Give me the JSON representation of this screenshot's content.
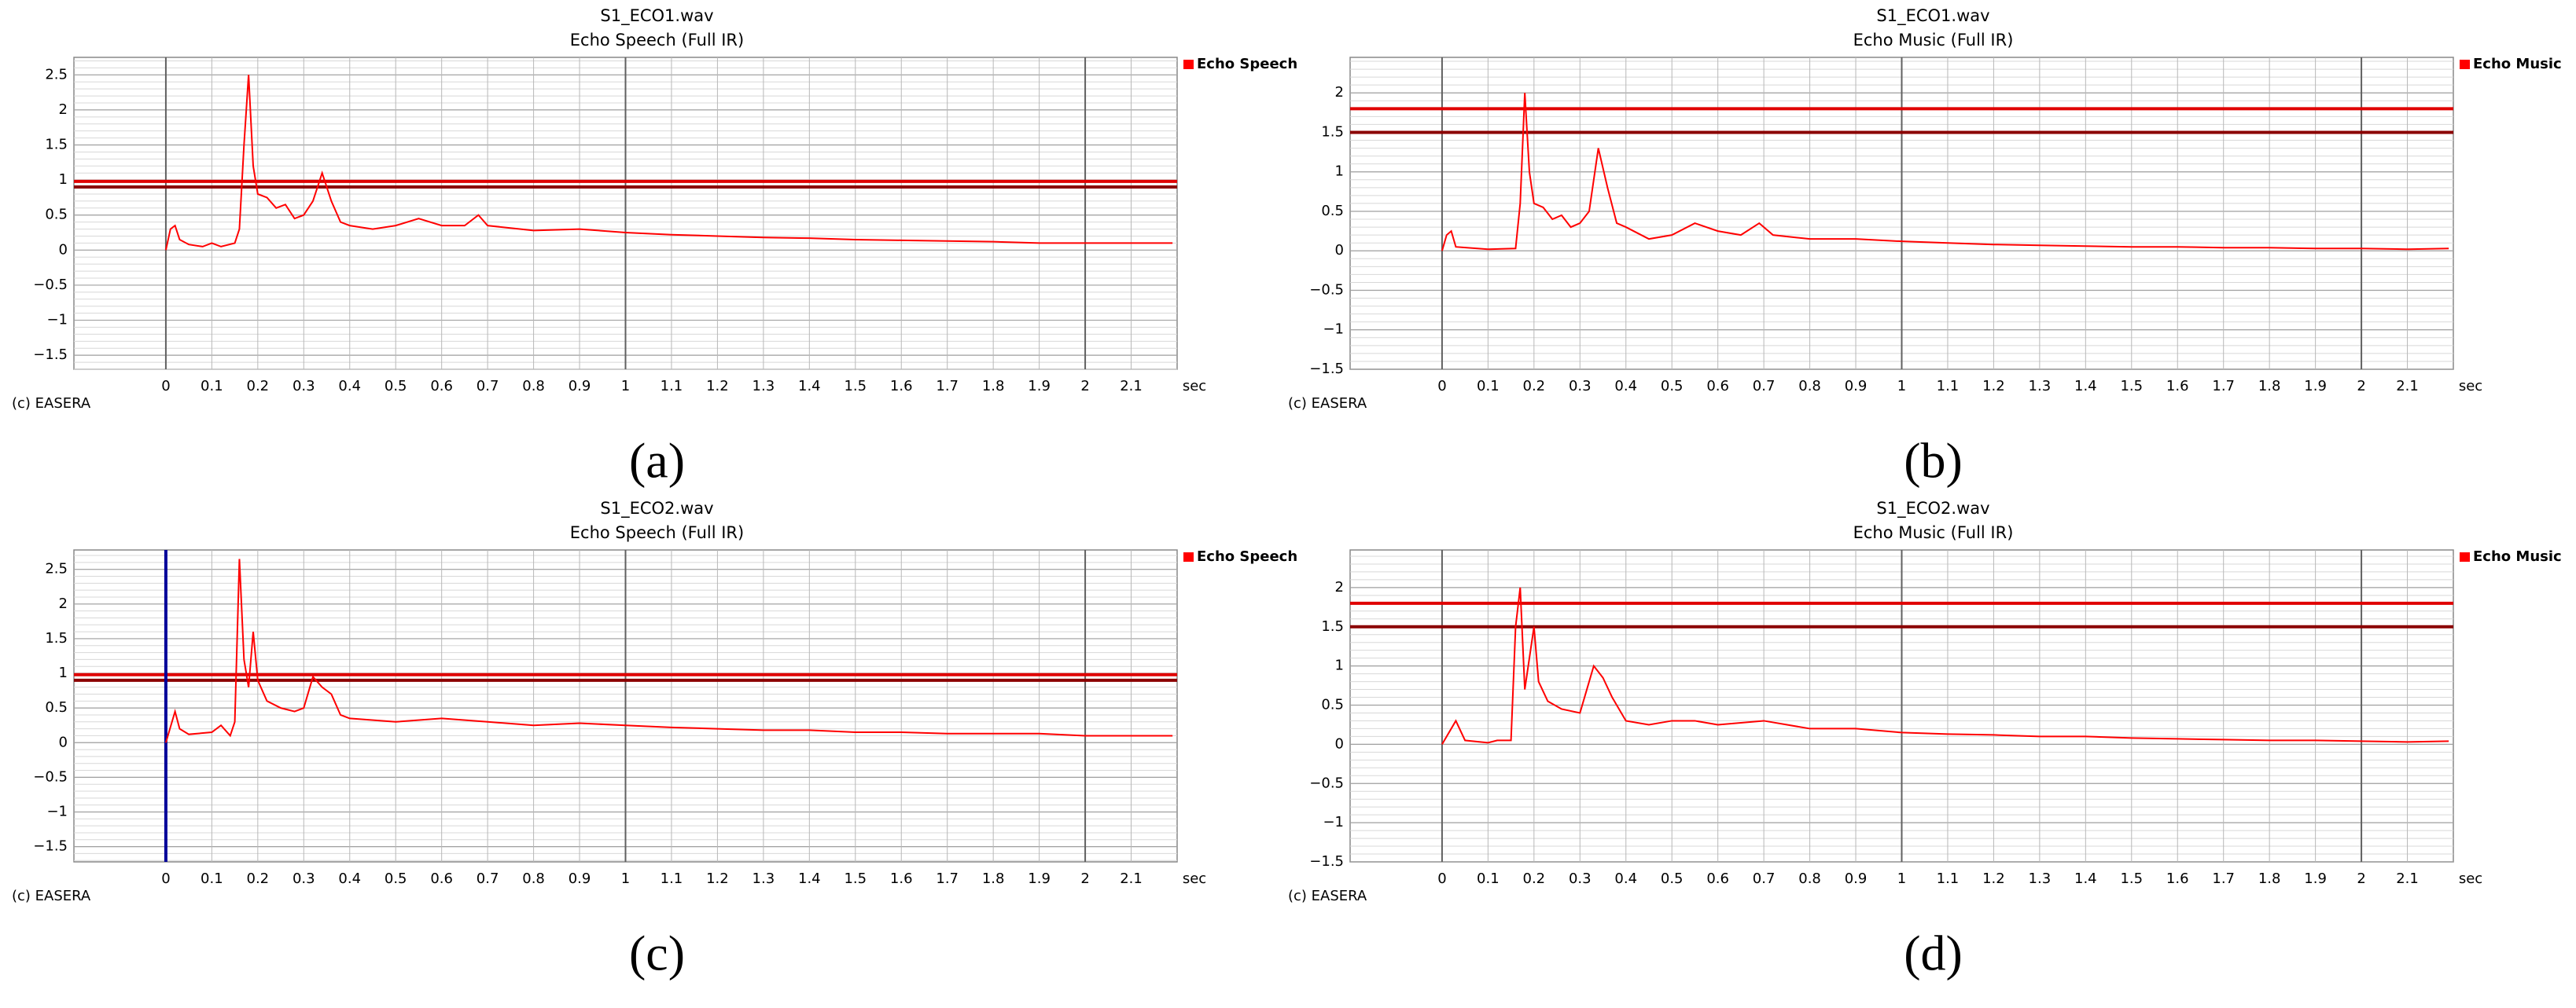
{
  "chart_data": [
    {
      "type": "line",
      "panel_label": "(a)",
      "title": "S1_ECO1.wav",
      "subtitle": "Echo Speech (Full IR)",
      "credit": "(c) EASERA",
      "xlabel": "sec",
      "xlim": [
        -0.2,
        2.2
      ],
      "xticks": [
        0,
        0.1,
        0.2,
        0.3,
        0.4,
        0.5,
        0.6,
        0.7,
        0.8,
        0.9,
        1,
        1.1,
        1.2,
        1.3,
        1.4,
        1.5,
        1.6,
        1.7,
        1.8,
        1.9,
        2,
        2.1
      ],
      "ylim": [
        -1.7,
        2.75
      ],
      "yticks": [
        {
          "value": -1.5,
          "label": "−1.5"
        },
        {
          "value": -1,
          "label": "−1"
        },
        {
          "value": -0.5,
          "label": "−0.5"
        },
        0,
        0.5,
        1,
        1.5,
        2,
        2.5
      ],
      "y_minor_step": 0.1,
      "reference_lines": [
        {
          "value": 0.98,
          "color": "#e00000"
        },
        {
          "value": 0.9,
          "color": "#8b0000"
        }
      ],
      "x": [
        0,
        0.01,
        0.02,
        0.03,
        0.05,
        0.08,
        0.1,
        0.12,
        0.15,
        0.16,
        0.17,
        0.18,
        0.19,
        0.2,
        0.22,
        0.24,
        0.26,
        0.28,
        0.3,
        0.32,
        0.34,
        0.36,
        0.38,
        0.4,
        0.45,
        0.5,
        0.55,
        0.6,
        0.65,
        0.68,
        0.7,
        0.8,
        0.9,
        1.0,
        1.1,
        1.2,
        1.3,
        1.4,
        1.5,
        1.6,
        1.7,
        1.8,
        1.9,
        2.0,
        2.1,
        2.19
      ],
      "series": [
        {
          "name": "Echo Speech",
          "color": "#ff0000",
          "values": [
            0,
            0.3,
            0.35,
            0.15,
            0.08,
            0.05,
            0.1,
            0.05,
            0.1,
            0.3,
            1.5,
            2.5,
            1.2,
            0.8,
            0.75,
            0.6,
            0.65,
            0.45,
            0.5,
            0.7,
            1.1,
            0.7,
            0.4,
            0.35,
            0.3,
            0.35,
            0.45,
            0.35,
            0.35,
            0.5,
            0.35,
            0.28,
            0.3,
            0.25,
            0.22,
            0.2,
            0.18,
            0.17,
            0.15,
            0.14,
            0.13,
            0.12,
            0.1,
            0.1,
            0.1,
            0.1
          ]
        }
      ]
    },
    {
      "type": "line",
      "panel_label": "(b)",
      "title": "S1_ECO1.wav",
      "subtitle": "Echo Music (Full IR)",
      "credit": "(c) EASERA",
      "xlabel": "sec",
      "xlim": [
        -0.2,
        2.2
      ],
      "xticks": [
        0,
        0.1,
        0.2,
        0.3,
        0.4,
        0.5,
        0.6,
        0.7,
        0.8,
        0.9,
        1,
        1.1,
        1.2,
        1.3,
        1.4,
        1.5,
        1.6,
        1.7,
        1.8,
        1.9,
        2,
        2.1
      ],
      "ylim": [
        -1.5,
        2.45
      ],
      "yticks": [
        {
          "value": -1.5,
          "label": "−1.5"
        },
        {
          "value": -1,
          "label": "−1"
        },
        {
          "value": -0.5,
          "label": "−0.5"
        },
        0,
        0.5,
        1,
        1.5,
        2
      ],
      "y_minor_step": 0.1,
      "reference_lines": [
        {
          "value": 1.8,
          "color": "#e00000"
        },
        {
          "value": 1.5,
          "color": "#8b0000"
        }
      ],
      "x": [
        0,
        0.01,
        0.02,
        0.03,
        0.1,
        0.16,
        0.17,
        0.18,
        0.19,
        0.2,
        0.22,
        0.24,
        0.26,
        0.28,
        0.3,
        0.32,
        0.34,
        0.36,
        0.38,
        0.4,
        0.45,
        0.5,
        0.55,
        0.6,
        0.65,
        0.69,
        0.72,
        0.8,
        0.9,
        1.0,
        1.1,
        1.2,
        1.3,
        1.4,
        1.5,
        1.6,
        1.7,
        1.8,
        1.9,
        2.0,
        2.1,
        2.19
      ],
      "series": [
        {
          "name": "Echo Music",
          "color": "#ff0000",
          "values": [
            0,
            0.2,
            0.25,
            0.05,
            0.02,
            0.03,
            0.6,
            2.0,
            1.0,
            0.6,
            0.55,
            0.4,
            0.45,
            0.3,
            0.35,
            0.5,
            1.3,
            0.8,
            0.35,
            0.3,
            0.15,
            0.2,
            0.35,
            0.25,
            0.2,
            0.35,
            0.2,
            0.15,
            0.15,
            0.12,
            0.1,
            0.08,
            0.07,
            0.06,
            0.05,
            0.05,
            0.04,
            0.04,
            0.03,
            0.03,
            0.02,
            0.03
          ]
        }
      ]
    },
    {
      "type": "line",
      "panel_label": "(c)",
      "title": "S1_ECO2.wav",
      "subtitle": "Echo Speech (Full IR)",
      "credit": "(c) EASERA",
      "xlabel": "sec",
      "xlim": [
        -0.2,
        2.2
      ],
      "xticks": [
        0,
        0.1,
        0.2,
        0.3,
        0.4,
        0.5,
        0.6,
        0.7,
        0.8,
        0.9,
        1,
        1.1,
        1.2,
        1.3,
        1.4,
        1.5,
        1.6,
        1.7,
        1.8,
        1.9,
        2,
        2.1
      ],
      "ylim": [
        -1.72,
        2.78
      ],
      "yticks": [
        {
          "value": -1.5,
          "label": "−1.5"
        },
        {
          "value": -1,
          "label": "−1"
        },
        {
          "value": -0.5,
          "label": "−0.5"
        },
        0,
        0.5,
        1,
        1.5,
        2,
        2.5
      ],
      "y_minor_step": 0.1,
      "reference_lines": [
        {
          "value": 0.98,
          "color": "#e00000"
        },
        {
          "value": 0.9,
          "color": "#8b0000"
        }
      ],
      "cursor": {
        "value": 0,
        "color": "#000099"
      },
      "x": [
        0,
        0.02,
        0.03,
        0.05,
        0.1,
        0.12,
        0.14,
        0.15,
        0.16,
        0.17,
        0.18,
        0.19,
        0.2,
        0.22,
        0.25,
        0.28,
        0.3,
        0.32,
        0.34,
        0.36,
        0.38,
        0.4,
        0.5,
        0.6,
        0.7,
        0.8,
        0.9,
        1.0,
        1.1,
        1.2,
        1.3,
        1.4,
        1.5,
        1.6,
        1.7,
        1.8,
        1.9,
        2.0,
        2.1,
        2.19
      ],
      "series": [
        {
          "name": "Echo Speech",
          "color": "#ff0000",
          "values": [
            0,
            0.45,
            0.2,
            0.12,
            0.15,
            0.25,
            0.1,
            0.3,
            2.65,
            1.2,
            0.8,
            1.6,
            0.9,
            0.6,
            0.5,
            0.45,
            0.5,
            0.95,
            0.8,
            0.7,
            0.4,
            0.35,
            0.3,
            0.35,
            0.3,
            0.25,
            0.28,
            0.25,
            0.22,
            0.2,
            0.18,
            0.18,
            0.15,
            0.15,
            0.13,
            0.13,
            0.13,
            0.1,
            0.1,
            0.1
          ]
        }
      ]
    },
    {
      "type": "line",
      "panel_label": "(d)",
      "title": "S1_ECO2.wav",
      "subtitle": "Echo Music (Full IR)",
      "credit": "(c) EASERA",
      "xlabel": "sec",
      "xlim": [
        -0.2,
        2.2
      ],
      "xticks": [
        0,
        0.1,
        0.2,
        0.3,
        0.4,
        0.5,
        0.6,
        0.7,
        0.8,
        0.9,
        1,
        1.1,
        1.2,
        1.3,
        1.4,
        1.5,
        1.6,
        1.7,
        1.8,
        1.9,
        2,
        2.1
      ],
      "ylim": [
        -1.5,
        2.48
      ],
      "yticks": [
        {
          "value": -1.5,
          "label": "−1.5"
        },
        {
          "value": -1,
          "label": "−1"
        },
        {
          "value": -0.5,
          "label": "−0.5"
        },
        0,
        0.5,
        1,
        1.5,
        2
      ],
      "y_minor_step": 0.1,
      "reference_lines": [
        {
          "value": 1.8,
          "color": "#e00000"
        },
        {
          "value": 1.5,
          "color": "#8b0000"
        }
      ],
      "x": [
        0,
        0.03,
        0.05,
        0.1,
        0.12,
        0.15,
        0.16,
        0.17,
        0.18,
        0.2,
        0.21,
        0.23,
        0.26,
        0.3,
        0.33,
        0.35,
        0.37,
        0.4,
        0.45,
        0.5,
        0.55,
        0.6,
        0.7,
        0.8,
        0.9,
        1.0,
        1.1,
        1.2,
        1.3,
        1.4,
        1.5,
        1.6,
        1.7,
        1.8,
        1.9,
        2.0,
        2.1,
        2.19
      ],
      "series": [
        {
          "name": "Echo Music",
          "color": "#ff0000",
          "values": [
            0,
            0.3,
            0.05,
            0.02,
            0.05,
            0.05,
            1.5,
            2.0,
            0.7,
            1.5,
            0.8,
            0.55,
            0.45,
            0.4,
            1.0,
            0.85,
            0.6,
            0.3,
            0.25,
            0.3,
            0.3,
            0.25,
            0.3,
            0.2,
            0.2,
            0.15,
            0.13,
            0.12,
            0.1,
            0.1,
            0.08,
            0.07,
            0.06,
            0.05,
            0.05,
            0.04,
            0.03,
            0.04
          ]
        }
      ]
    }
  ]
}
